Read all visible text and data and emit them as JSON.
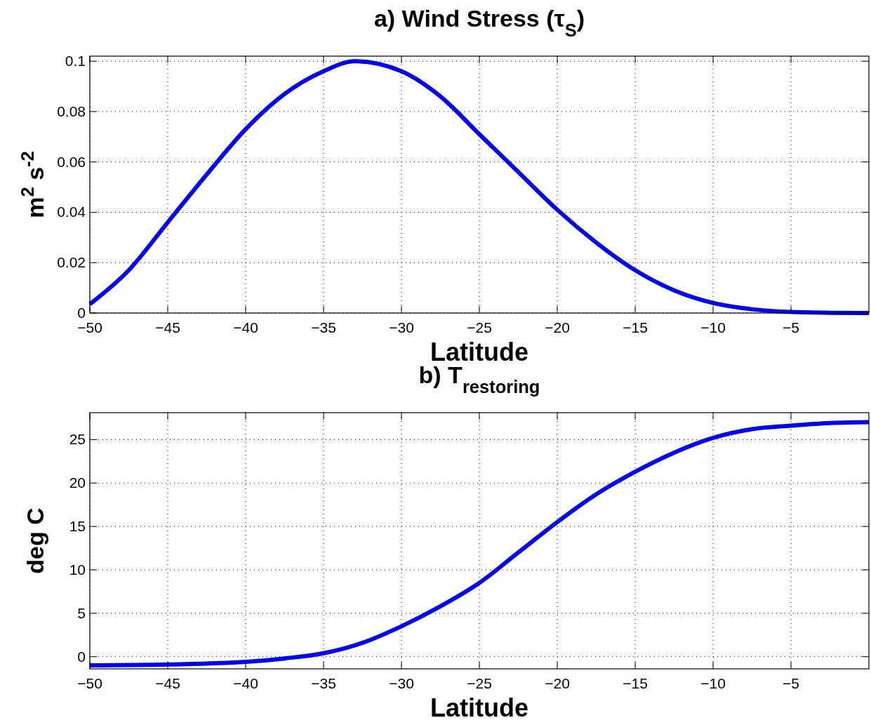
{
  "chart_data": [
    {
      "type": "line",
      "title": "a) Wind Stress (τ$_{S}$)",
      "xlabel": "Latitude",
      "ylabel": "m$^{2}$ s$^{-2}$",
      "x": [
        -50,
        -47.5,
        -45,
        -42.5,
        -40,
        -37.5,
        -35,
        -33,
        -30,
        -27.5,
        -25,
        -22.5,
        -20,
        -17.5,
        -15,
        -12.5,
        -10,
        -7.5,
        -5,
        -2.5,
        0
      ],
      "series": [
        {
          "color": "#0000ff",
          "values": [
            0.0035,
            0.017,
            0.036,
            0.055,
            0.073,
            0.087,
            0.096,
            0.1,
            0.096,
            0.086,
            0.071,
            0.056,
            0.041,
            0.028,
            0.017,
            0.009,
            0.004,
            0.0015,
            0.0004,
            0.0001,
            0
          ]
        }
      ],
      "xlim": [
        -50,
        0
      ],
      "ylim": [
        0,
        0.102
      ],
      "xticks": [
        -50,
        -45,
        -40,
        -35,
        -30,
        -25,
        -20,
        -15,
        -10,
        -5
      ],
      "yticks": [
        0,
        0.02,
        0.04,
        0.06,
        0.08,
        0.1
      ],
      "grid": true,
      "line_style": "solid"
    },
    {
      "type": "line",
      "title": "b) T$_{restoring}$",
      "xlabel": "Latitude",
      "ylabel": "deg C",
      "x": [
        -50,
        -45,
        -40,
        -37.5,
        -35,
        -32.5,
        -30,
        -27.5,
        -25,
        -22.5,
        -20,
        -17.5,
        -15,
        -12.5,
        -10,
        -7.5,
        -5,
        -2.5,
        0
      ],
      "series": [
        {
          "color": "#0000ff",
          "values": [
            -1,
            -0.9,
            -0.6,
            -0.2,
            0.4,
            1.6,
            3.5,
            5.8,
            8.5,
            12,
            15.5,
            18.7,
            21.3,
            23.5,
            25.2,
            26.2,
            26.6,
            26.9,
            27
          ]
        }
      ],
      "xlim": [
        -50,
        0
      ],
      "ylim": [
        -1.4,
        28.1
      ],
      "xticks": [
        -50,
        -45,
        -40,
        -35,
        -30,
        -25,
        -20,
        -15,
        -10,
        -5
      ],
      "yticks": [
        0,
        5,
        10,
        15,
        20,
        25
      ],
      "grid": true,
      "line_style": "solid"
    }
  ]
}
